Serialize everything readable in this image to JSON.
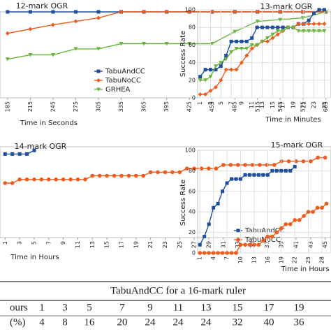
{
  "chart_data": [
    {
      "type": "line",
      "title": "12-mark OGR",
      "x_label": "Time in Seconds",
      "x": [
        185,
        215,
        245,
        275,
        305,
        335,
        365,
        395,
        425,
        455,
        485,
        515,
        545,
        575,
        605
      ],
      "xlim": [
        175,
        612
      ],
      "xticks": [
        185,
        215,
        245,
        275,
        305,
        335,
        365,
        395,
        425,
        455,
        485,
        515,
        545,
        575,
        605
      ],
      "ylim": [
        0,
        100
      ],
      "series": [
        {
          "name": "TabuAndCC",
          "color": "#1f4e9c",
          "marker": "square",
          "values": [
            100,
            100,
            100,
            100,
            100,
            100,
            100,
            100,
            100,
            100,
            100,
            100,
            100,
            100,
            100
          ]
        },
        {
          "name": "TabuNoCC",
          "color": "#f05a1a",
          "marker": "diamond",
          "values": [
            75,
            80,
            85,
            89,
            93,
            100,
            100,
            100,
            100,
            100,
            100,
            100,
            100,
            100,
            100
          ]
        },
        {
          "name": "GRHEA",
          "color": "#6cb33f",
          "marker": "triangle",
          "values": [
            45,
            50,
            50,
            57,
            57,
            63,
            63,
            63,
            63,
            63,
            77,
            89,
            91,
            93,
            100
          ]
        }
      ]
    },
    {
      "type": "line",
      "title": "13-mark OGR",
      "x_label": "Time in Minutes",
      "y_label": "Success Rate",
      "x": [
        1,
        2,
        3,
        4,
        5,
        6,
        7,
        8,
        9,
        10,
        11,
        12,
        13,
        14,
        15,
        16,
        17,
        18,
        19,
        20,
        21,
        22,
        23,
        24,
        25
      ],
      "xlim": [
        0.5,
        26.3
      ],
      "xticks": [
        1,
        3,
        5,
        7,
        9,
        11,
        13,
        15,
        17,
        19,
        21,
        23,
        25
      ],
      "ylim": [
        0,
        100
      ],
      "yticks": [
        0,
        20,
        40,
        60,
        80,
        100
      ],
      "grid": true,
      "series": [
        {
          "name": "TabuAndCC",
          "color": "#1f4e9c",
          "marker": "square",
          "values": [
            24,
            32,
            32,
            32,
            36,
            48,
            64,
            64,
            64,
            64,
            68,
            80,
            80,
            80,
            80,
            80,
            80,
            80,
            80,
            84,
            84,
            88,
            96,
            100,
            100
          ]
        },
        {
          "name": "TabuNoCC",
          "color": "#f05a1a",
          "marker": "diamond",
          "values": [
            4,
            4,
            8,
            12,
            20,
            32,
            32,
            32,
            40,
            48,
            56,
            60,
            64,
            64,
            68,
            72,
            76,
            80,
            80,
            84,
            84,
            84,
            84,
            84,
            84
          ]
        },
        {
          "name": "GRHEA",
          "color": "#6cb33f",
          "marker": "triangle",
          "values": [
            20,
            20,
            24,
            36,
            40,
            44,
            52,
            56,
            56,
            56,
            60,
            60,
            64,
            68,
            72,
            76,
            76,
            80,
            80,
            76,
            76,
            76,
            76,
            76,
            76
          ]
        }
      ]
    },
    {
      "type": "line",
      "title": "14-mark OGR",
      "x_label": "Time in Hours",
      "x": [
        1,
        2,
        3,
        4,
        5,
        6,
        7,
        8,
        9,
        10,
        11,
        12,
        13,
        14,
        15,
        16,
        17,
        18,
        19,
        20,
        21,
        22,
        23,
        24,
        25,
        26,
        27,
        28,
        29,
        30,
        31,
        32,
        33,
        34,
        35,
        36,
        37,
        38,
        39,
        40,
        41,
        42,
        43,
        44,
        45
      ],
      "xlim": [
        0.3,
        45.8
      ],
      "xticks": [
        1,
        3,
        5,
        7,
        9,
        11,
        13,
        15,
        17,
        19,
        21,
        23,
        25,
        27,
        29,
        31,
        33,
        35,
        37,
        39,
        41,
        43,
        45
      ],
      "ylim": [
        0,
        100
      ],
      "series": [
        {
          "name": "TabuAndCC",
          "color": "#1f4e9c",
          "marker": "square",
          "values": [
            92,
            92,
            92,
            92,
            96,
            null,
            null,
            null,
            null,
            null,
            null,
            null,
            null,
            null,
            null,
            null,
            null,
            null,
            null,
            null,
            null,
            null,
            null,
            null,
            null,
            null,
            null,
            null,
            null,
            null,
            null,
            null,
            null,
            null,
            null,
            null,
            null,
            null,
            null,
            null,
            null,
            null,
            null,
            null,
            null
          ]
        },
        {
          "name": "TabuNoCC",
          "color": "#f05a1a",
          "marker": "circle",
          "values": [
            60,
            60,
            64,
            64,
            64,
            64,
            64,
            64,
            64,
            64,
            64,
            64,
            68,
            68,
            68,
            68,
            68,
            68,
            68,
            68,
            72,
            72,
            72,
            72,
            72,
            76,
            76,
            76,
            76,
            76,
            80,
            80,
            80,
            80,
            80,
            80,
            80,
            80,
            84,
            84,
            84,
            84,
            84,
            88,
            88
          ]
        }
      ]
    },
    {
      "type": "line",
      "title": "15-mark OGR",
      "x_label": "Time in Hours",
      "y_label": "Success Rate",
      "x": [
        1,
        2,
        3,
        4,
        5,
        6,
        7,
        8,
        9,
        10,
        11,
        12,
        13,
        14,
        15,
        16,
        17,
        18,
        19,
        20,
        21,
        22,
        23,
        24,
        25,
        26,
        27,
        28,
        29
      ],
      "xlim": [
        0.5,
        30
      ],
      "xticks": [
        1,
        4,
        7,
        10,
        13,
        16,
        19,
        22,
        25,
        28
      ],
      "ylim": [
        0,
        100
      ],
      "yticks": [
        0,
        20,
        40,
        60,
        80,
        100
      ],
      "grid": true,
      "series": [
        {
          "name": "TabuAndCC",
          "color": "#1f4e9c",
          "marker": "square",
          "values": [
            8,
            16,
            28,
            44,
            48,
            60,
            68,
            72,
            72,
            72,
            76,
            76,
            76,
            76,
            76,
            76,
            80,
            80,
            80,
            80,
            80,
            84,
            null,
            null,
            null,
            null,
            null,
            null,
            null
          ]
        },
        {
          "name": "TabuNoCC",
          "color": "#f05a1a",
          "marker": "circle",
          "values": [
            0,
            0,
            0,
            0,
            0,
            0,
            0,
            0,
            0,
            8,
            8,
            8,
            8,
            8,
            12,
            16,
            16,
            20,
            24,
            28,
            28,
            32,
            32,
            36,
            40,
            40,
            44,
            44,
            48
          ]
        }
      ]
    }
  ],
  "table": {
    "title": "TabuAndCC for a 16-mark ruler",
    "rows": [
      [
        "ours",
        "1",
        "3",
        "5",
        "7",
        "9",
        "11",
        "13",
        "15",
        "17",
        "19"
      ],
      [
        "(%)",
        "4",
        "8",
        "16",
        "20",
        "24",
        "24",
        "24",
        "32",
        "40",
        "36"
      ]
    ]
  }
}
